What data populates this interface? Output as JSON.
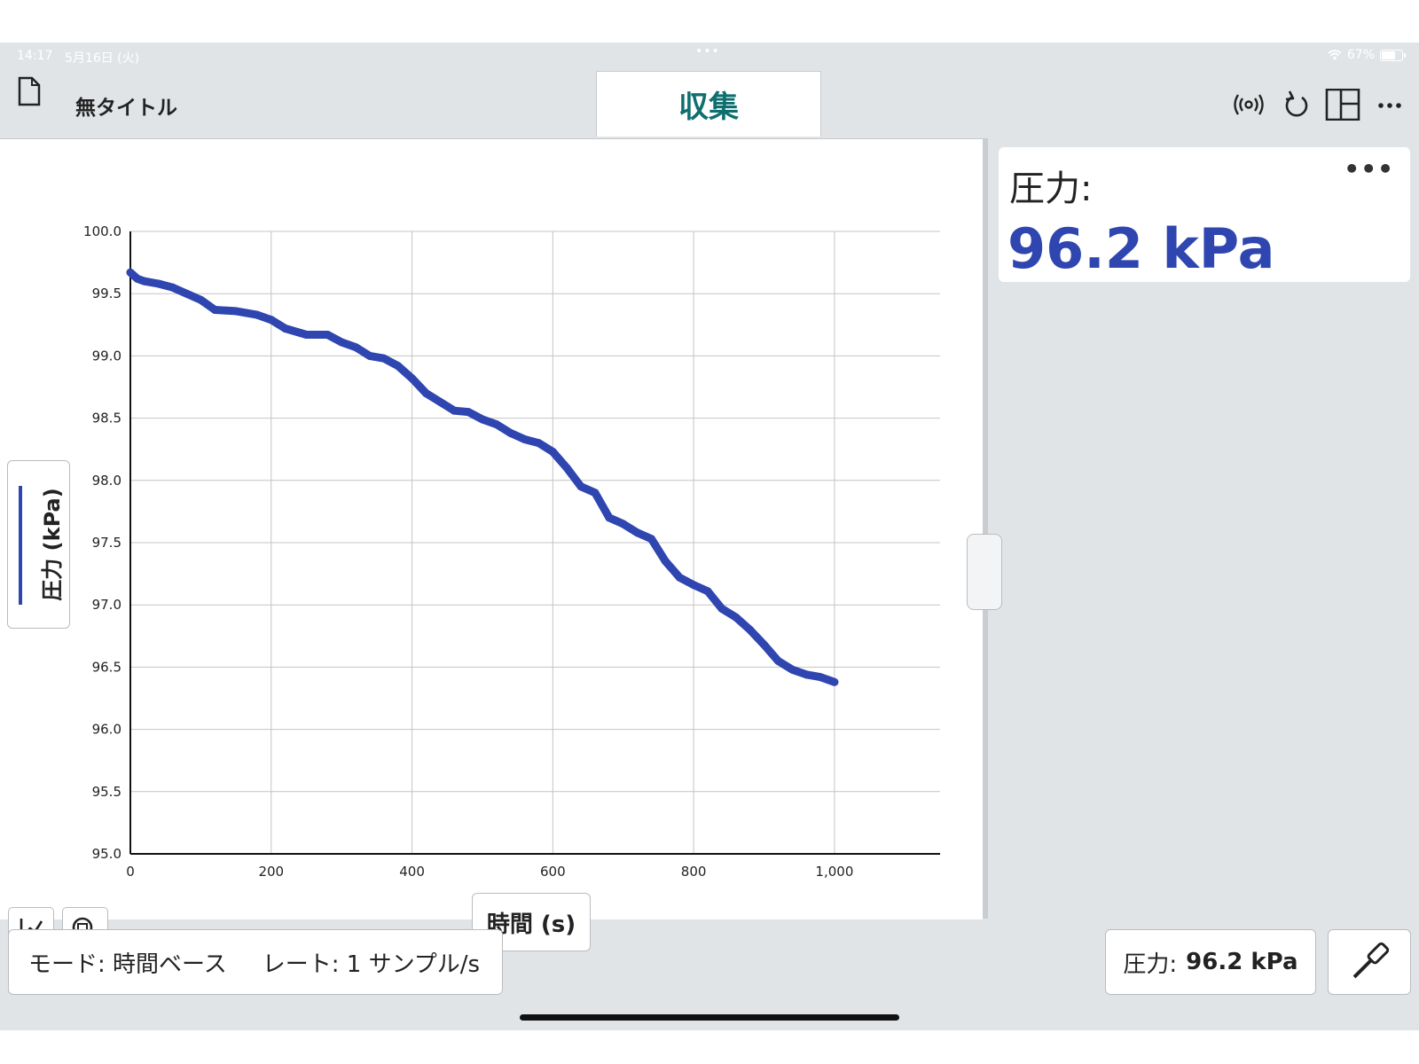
{
  "status_bar": {
    "time": "14:17",
    "date": "5月16日 (火)",
    "wifi_icon": "wifi-icon",
    "battery": "67%"
  },
  "header": {
    "document_title": "無タイトル",
    "active_tab": "収集",
    "icons": [
      "document-icon",
      "sensor-connect-icon",
      "undo-icon",
      "layout-icon",
      "more-icon"
    ]
  },
  "graph": {
    "y_axis_label": "圧力 (kPa)",
    "x_axis_label": "時間 (s)",
    "series_color": "#2f45b0"
  },
  "chart_data": {
    "type": "line",
    "xlabel": "時間 (s)",
    "ylabel": "圧力 (kPa)",
    "xlim": [
      0,
      1150
    ],
    "ylim": [
      95.0,
      100.0
    ],
    "x_ticks": [
      0,
      200,
      400,
      600,
      800,
      1000
    ],
    "x_tick_labels": [
      "0",
      "200",
      "400",
      "600",
      "800",
      "1,000"
    ],
    "y_ticks": [
      95.0,
      95.5,
      96.0,
      96.5,
      97.0,
      97.5,
      98.0,
      98.5,
      99.0,
      99.5,
      100.0
    ],
    "y_tick_labels": [
      "95.0",
      "95.5",
      "96.0",
      "96.5",
      "97.0",
      "97.5",
      "98.0",
      "98.5",
      "99.0",
      "99.5",
      "100.0"
    ],
    "grid": true,
    "series": [
      {
        "color": "#2f45b0",
        "x": [
          0,
          10,
          20,
          40,
          60,
          80,
          100,
          120,
          150,
          180,
          200,
          220,
          250,
          280,
          300,
          320,
          340,
          360,
          380,
          400,
          420,
          440,
          460,
          480,
          500,
          520,
          540,
          560,
          580,
          600,
          620,
          640,
          660,
          680,
          700,
          720,
          740,
          760,
          780,
          800,
          820,
          840,
          860,
          880,
          900,
          920,
          940,
          960,
          980,
          1000
        ],
        "y": [
          99.67,
          99.62,
          99.6,
          99.58,
          99.55,
          99.5,
          99.45,
          99.37,
          99.36,
          99.33,
          99.29,
          99.22,
          99.17,
          99.17,
          99.11,
          99.07,
          99.0,
          98.98,
          98.92,
          98.82,
          98.7,
          98.63,
          98.56,
          98.55,
          98.49,
          98.45,
          98.38,
          98.33,
          98.3,
          98.23,
          98.1,
          97.95,
          97.9,
          97.7,
          97.65,
          97.58,
          97.53,
          97.35,
          97.22,
          97.16,
          97.11,
          96.97,
          96.9,
          96.8,
          96.68,
          96.55,
          96.48,
          96.44,
          96.42,
          96.38
        ]
      }
    ]
  },
  "tools": {
    "graph_tool_icon": "graph-tools-icon",
    "zoom_icon": "zoom-icon"
  },
  "meter": {
    "label": "圧力:",
    "value": "96.2 kPa",
    "more": "•••"
  },
  "footer": {
    "mode_text": "モード: 時間ベース",
    "rate_text": "レート: 1 サンプル/s",
    "readout_label": "圧力:",
    "readout_value": "96.2 kPa",
    "probe_icon": "sensor-probe-icon"
  }
}
